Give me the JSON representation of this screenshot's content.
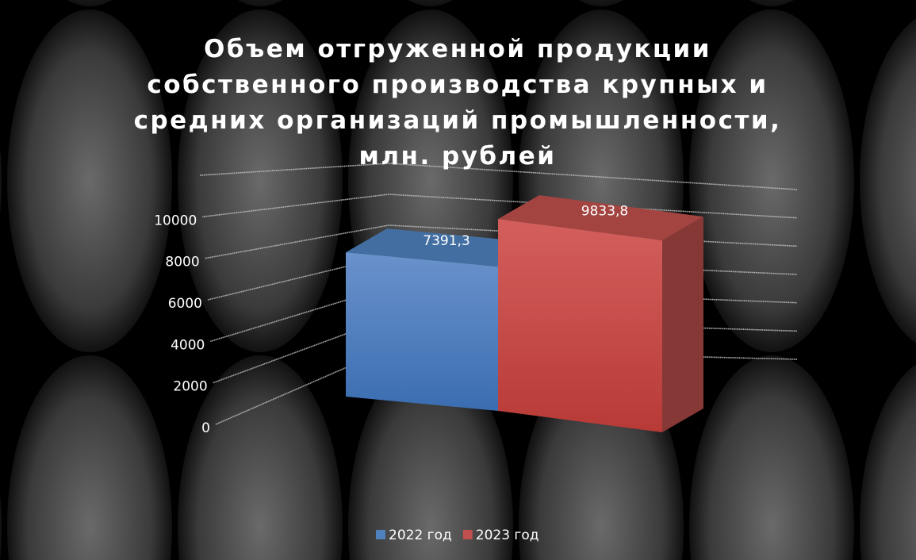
{
  "chart_data": {
    "type": "bar3d",
    "title": "Объем отгруженной продукции собственного производства крупных и средних организаций промышленности, млн. рублей",
    "categories": [
      null
    ],
    "series": [
      {
        "name": "2022 год",
        "color": "#4f81bd",
        "values": [
          7391.3
        ],
        "value_labels": [
          "7391,3"
        ]
      },
      {
        "name": "2023 год",
        "color": "#c0504d",
        "values": [
          9833.8
        ],
        "value_labels": [
          "9833,8"
        ]
      }
    ],
    "ylim": [
      0,
      12000
    ],
    "yticks": [
      0,
      2000,
      4000,
      6000,
      8000,
      10000
    ],
    "grid": true,
    "legend": "bottom"
  }
}
